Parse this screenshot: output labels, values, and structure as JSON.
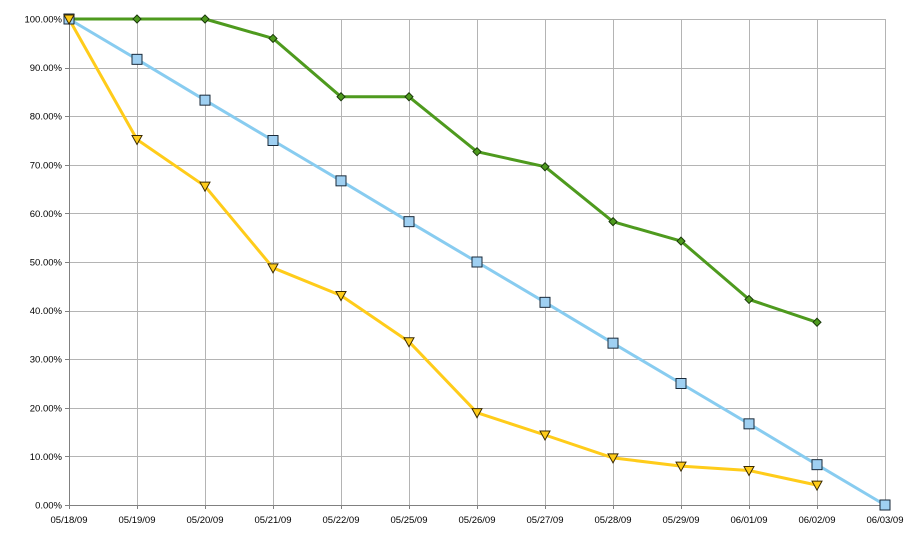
{
  "chart_data": {
    "type": "line",
    "title": "",
    "xlabel": "",
    "ylabel": "",
    "x": [
      "05/18/09",
      "05/19/09",
      "05/20/09",
      "05/21/09",
      "05/22/09",
      "05/25/09",
      "05/26/09",
      "05/27/09",
      "05/28/09",
      "05/29/09",
      "06/01/09",
      "06/02/09",
      "06/03/09"
    ],
    "y_ticks": [
      "0.00%",
      "10.00%",
      "20.00%",
      "30.00%",
      "40.00%",
      "50.00%",
      "60.00%",
      "70.00%",
      "80.00%",
      "90.00%",
      "100.00%"
    ],
    "ylim": [
      0,
      100
    ],
    "grid": true,
    "legend": "none",
    "series": [
      {
        "color": "#4e9a1e",
        "marker": "diamond",
        "marker_fill": "#4e9a1e",
        "values": [
          100,
          100,
          100,
          96,
          84,
          84,
          72.7,
          69.6,
          58.3,
          54.3,
          42.3,
          37.6,
          null
        ]
      },
      {
        "color": "#88ccf0",
        "marker": "square",
        "marker_fill": "#9fd0f2",
        "values": [
          100,
          91.7,
          83.3,
          75,
          66.7,
          58.3,
          50,
          41.7,
          33.3,
          25,
          16.7,
          8.3,
          0
        ]
      },
      {
        "color": "#ffcc1a",
        "marker": "triangle-down",
        "marker_fill": "#ffcc1a",
        "values": [
          100,
          75.2,
          65.6,
          48.8,
          43.1,
          33.6,
          19,
          14.4,
          9.7,
          8,
          7.1,
          4.1,
          null
        ]
      }
    ]
  }
}
